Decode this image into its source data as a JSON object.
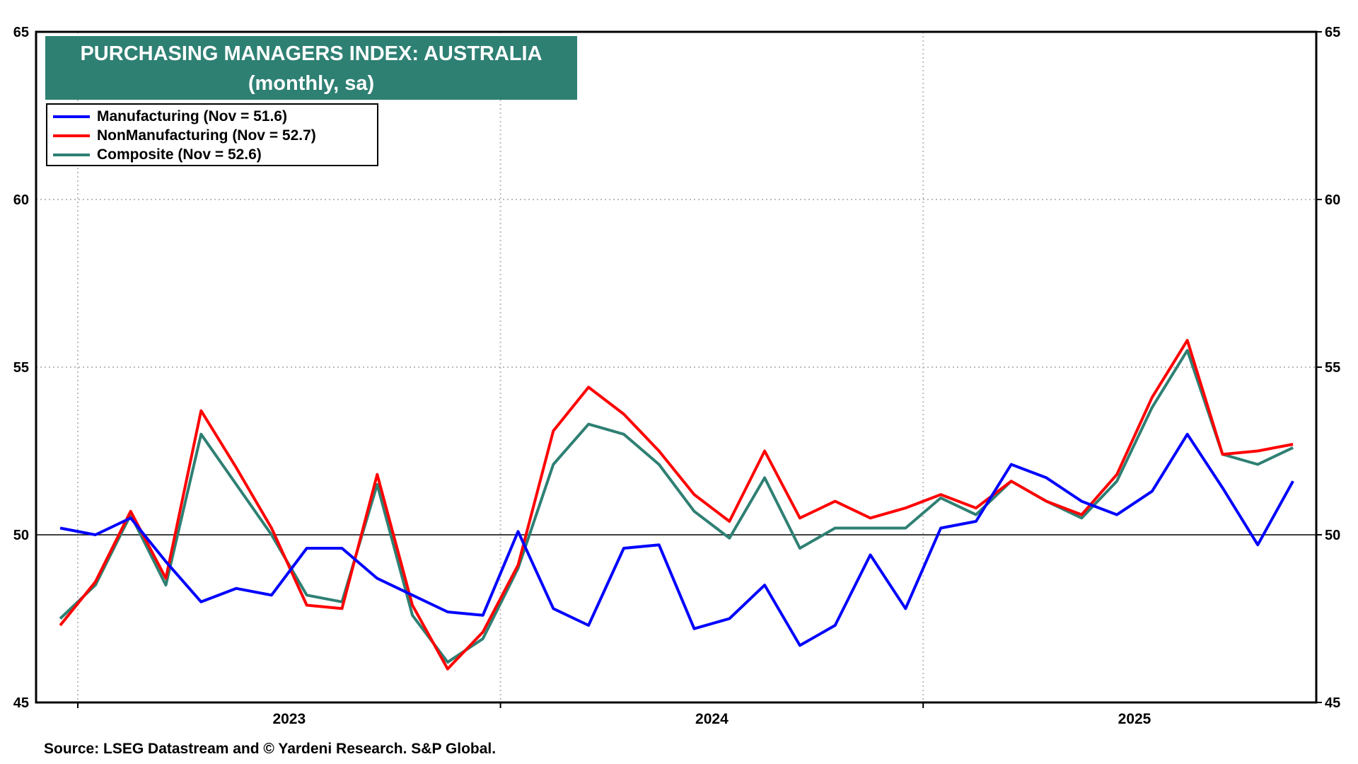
{
  "chart_data": {
    "type": "line",
    "title": "PURCHASING MANAGERS INDEX: AUSTRALIA",
    "subtitle": "(monthly, sa)",
    "xlabel": "",
    "ylabel": "",
    "ylim": [
      45,
      65
    ],
    "yticks": [
      45,
      50,
      55,
      60,
      65
    ],
    "x_tick_labels": [
      "2023",
      "2024",
      "2025"
    ],
    "x": [
      "2022-12",
      "2023-01",
      "2023-02",
      "2023-03",
      "2023-04",
      "2023-05",
      "2023-06",
      "2023-07",
      "2023-08",
      "2023-09",
      "2023-10",
      "2023-11",
      "2023-12",
      "2024-01",
      "2024-02",
      "2024-03",
      "2024-04",
      "2024-05",
      "2024-06",
      "2024-07",
      "2024-08",
      "2024-09",
      "2024-10",
      "2024-11",
      "2024-12",
      "2025-01",
      "2025-02",
      "2025-03",
      "2025-04",
      "2025-05",
      "2025-06",
      "2025-07",
      "2025-08",
      "2025-09",
      "2025-10",
      "2025-11"
    ],
    "reference_line": 50,
    "grid": true,
    "legend_placement": "top-left",
    "series": [
      {
        "name": "Manufacturing (Nov = 51.6)",
        "color": "#0000FF",
        "values": [
          50.2,
          50.0,
          50.5,
          49.2,
          48.0,
          48.4,
          48.2,
          49.6,
          49.6,
          48.7,
          48.2,
          47.7,
          47.6,
          50.1,
          47.8,
          47.3,
          49.6,
          49.7,
          47.2,
          47.5,
          48.5,
          46.7,
          47.3,
          49.4,
          47.8,
          50.2,
          50.4,
          52.1,
          51.7,
          51.0,
          50.6,
          51.3,
          53.0,
          51.4,
          49.7,
          51.6
        ]
      },
      {
        "name": "NonManufacturing (Nov = 52.7)",
        "color": "#FF0000",
        "values": [
          47.3,
          48.6,
          50.7,
          48.7,
          53.7,
          52.0,
          50.2,
          47.9,
          47.8,
          51.8,
          47.9,
          46.0,
          47.1,
          49.1,
          53.1,
          54.4,
          53.6,
          52.5,
          51.2,
          50.4,
          52.5,
          50.5,
          51.0,
          50.5,
          50.8,
          51.2,
          50.8,
          51.6,
          51.0,
          50.6,
          51.8,
          54.1,
          55.8,
          52.4,
          52.5,
          52.7
        ]
      },
      {
        "name": "Composite (Nov = 52.6)",
        "color": "#2E8073",
        "values": [
          47.5,
          48.5,
          50.6,
          48.5,
          53.0,
          51.5,
          50.0,
          48.2,
          48.0,
          51.5,
          47.6,
          46.2,
          46.9,
          49.0,
          52.1,
          53.3,
          53.0,
          52.1,
          50.7,
          49.9,
          51.7,
          49.6,
          50.2,
          50.2,
          50.2,
          51.1,
          50.6,
          51.6,
          51.0,
          50.5,
          51.6,
          53.8,
          55.5,
          52.4,
          52.1,
          52.6
        ]
      }
    ],
    "source": "Source: LSEG Datastream and © Yardeni Research. S&P Global."
  }
}
